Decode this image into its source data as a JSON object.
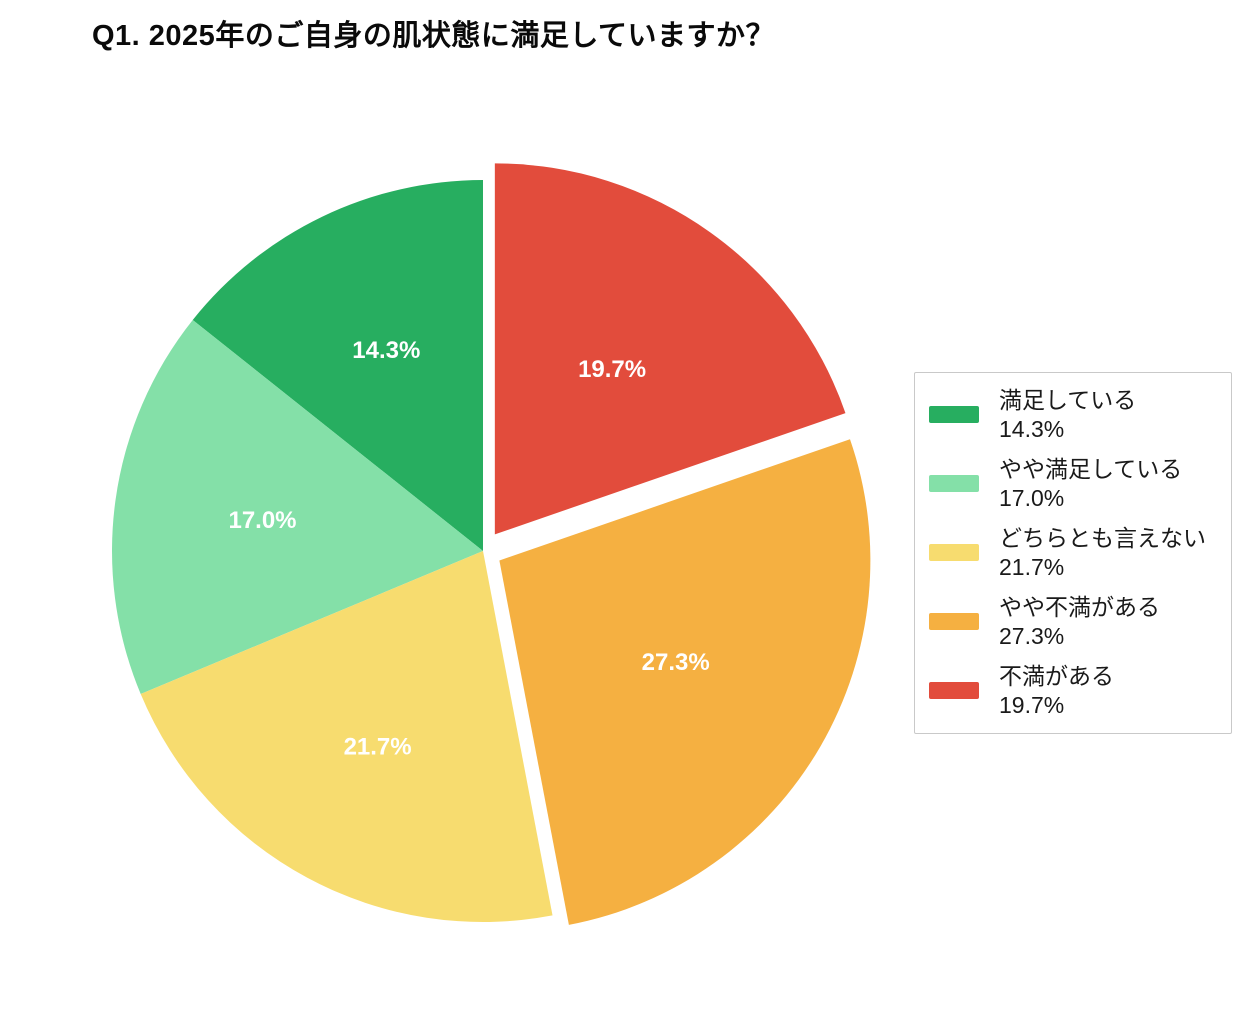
{
  "header": {
    "title": "Q1. 2025年のご自身の肌状態に満足していますか？"
  },
  "chart_data": {
    "type": "pie",
    "title": "Q1. 2025年のご自身の肌状態に満足していますか？",
    "categories": [
      "満足している",
      "やや満足している",
      "どちらとも言えない",
      "やや不満がある",
      "不満がある"
    ],
    "values": [
      14.3,
      17.0,
      21.7,
      27.3,
      19.7
    ],
    "slice_labels": [
      "14.3%",
      "17.0%",
      "21.7%",
      "27.3%",
      "19.7%"
    ],
    "colors": [
      "#27ae60",
      "#84e0a8",
      "#f7dc6f",
      "#f5b041",
      "#e24c3c"
    ],
    "slice_label_color": "#ffffff",
    "start_angle": 90,
    "counterclock": true,
    "explode": [
      0,
      0,
      0,
      0.051,
      0.055
    ],
    "pct_distance": 0.6,
    "legend": {
      "position": "right",
      "entries": [
        {
          "label": "満足している",
          "value": "14.3%"
        },
        {
          "label": "やや満足している",
          "value": "17.0%"
        },
        {
          "label": "どちらとも言えない",
          "value": "21.7%"
        },
        {
          "label": "やや不満がある",
          "value": "27.3%"
        },
        {
          "label": "不満がある",
          "value": "19.7%"
        }
      ]
    }
  }
}
